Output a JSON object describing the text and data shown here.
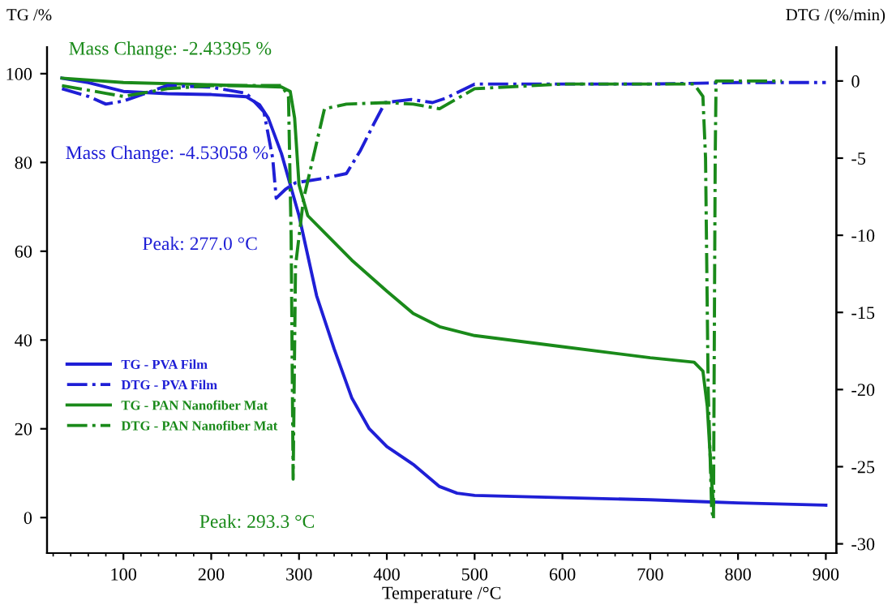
{
  "chart_data": {
    "type": "line",
    "xlabel": "Temperature /°C",
    "ylabel": "TG /%",
    "y2label": "DTG /(%/min)",
    "xlim": [
      13,
      912
    ],
    "xticks": [
      100,
      200,
      300,
      400,
      500,
      600,
      700,
      800,
      900
    ],
    "ylim": [
      -8,
      106
    ],
    "yticks": [
      0,
      20,
      40,
      60,
      80,
      100
    ],
    "y2lim": [
      -30.6,
      2.2
    ],
    "y2ticks": [
      0,
      -5,
      -10,
      -15,
      -20,
      -25,
      -30
    ],
    "grid": false,
    "legend": "left",
    "marker": "none",
    "series": [
      {
        "name": "TG - PVA Film",
        "color": "#1f1fd6",
        "line_style": "solid",
        "x": [
          30,
          60,
          100,
          150,
          200,
          240,
          255,
          265,
          280,
          300,
          320,
          340,
          360,
          380,
          400,
          430,
          460,
          480,
          500,
          600,
          700,
          770,
          800,
          900
        ],
        "values": [
          99,
          98,
          96,
          95.5,
          95.3,
          94.8,
          93,
          90,
          82,
          68,
          50,
          38,
          27,
          20,
          16,
          12,
          7,
          5.5,
          5,
          4.5,
          4,
          3.5,
          3.3,
          2.8
        ]
      },
      {
        "name": "DTG - PVA Film",
        "color": "#1f1fd6",
        "line_style": "dashdot",
        "axis": "y2",
        "x": [
          30,
          60,
          80,
          100,
          150,
          200,
          240,
          260,
          270,
          274,
          285,
          296,
          329,
          354,
          370,
          385,
          398,
          428,
          452,
          468,
          500,
          600,
          700,
          800,
          900
        ],
        "values": [
          -0.5,
          -1,
          -1.5,
          -1.3,
          -0.3,
          -0.4,
          -0.8,
          -2,
          -5,
          -7.6,
          -7,
          -6.6,
          -6.3,
          -6,
          -4.5,
          -2.8,
          -1.4,
          -1.2,
          -1.4,
          -1.1,
          -0.2,
          -0.2,
          -0.2,
          -0.1,
          -0.1
        ]
      },
      {
        "name": "TG - PAN Nanofiber Mat",
        "color": "#1a8a1a",
        "line_style": "solid",
        "x": [
          30,
          100,
          200,
          280,
          290,
          295,
          300,
          310,
          330,
          360,
          400,
          430,
          460,
          500,
          600,
          700,
          750,
          760,
          765,
          770,
          772
        ],
        "values": [
          99,
          98,
          97.5,
          97,
          96,
          90,
          75,
          68,
          64,
          58,
          51,
          46,
          43,
          41,
          38.5,
          36,
          35,
          33,
          25,
          8,
          3
        ]
      },
      {
        "name": "DTG - PAN Nanofiber Mat",
        "color": "#1a8a1a",
        "line_style": "dashdot",
        "axis": "y2",
        "x": [
          30,
          80,
          100,
          150,
          200,
          280,
          288,
          291,
          293.3,
          296,
          305,
          329,
          354,
          400,
          430,
          460,
          500,
          600,
          750,
          760,
          763,
          766,
          770,
          772,
          774,
          775,
          850
        ],
        "values": [
          -0.3,
          -0.8,
          -1,
          -0.5,
          -0.3,
          -0.3,
          -1,
          -10,
          -25.8,
          -12,
          -7.7,
          -1.8,
          -1.5,
          -1.4,
          -1.5,
          -1.8,
          -0.5,
          -0.2,
          -0.2,
          -1,
          -5,
          -20,
          -27.8,
          -28.4,
          -5,
          0,
          0
        ]
      }
    ],
    "annotations": [
      "Mass Change: -2.43395 %",
      "Mass Change: -4.53058 %",
      {
        "text": "Peak: 277.0 °C",
        "x": 277,
        "y": 72
      },
      {
        "text": "Peak: 293.3 °C",
        "x": 293.3,
        "y": 8.4
      }
    ]
  }
}
